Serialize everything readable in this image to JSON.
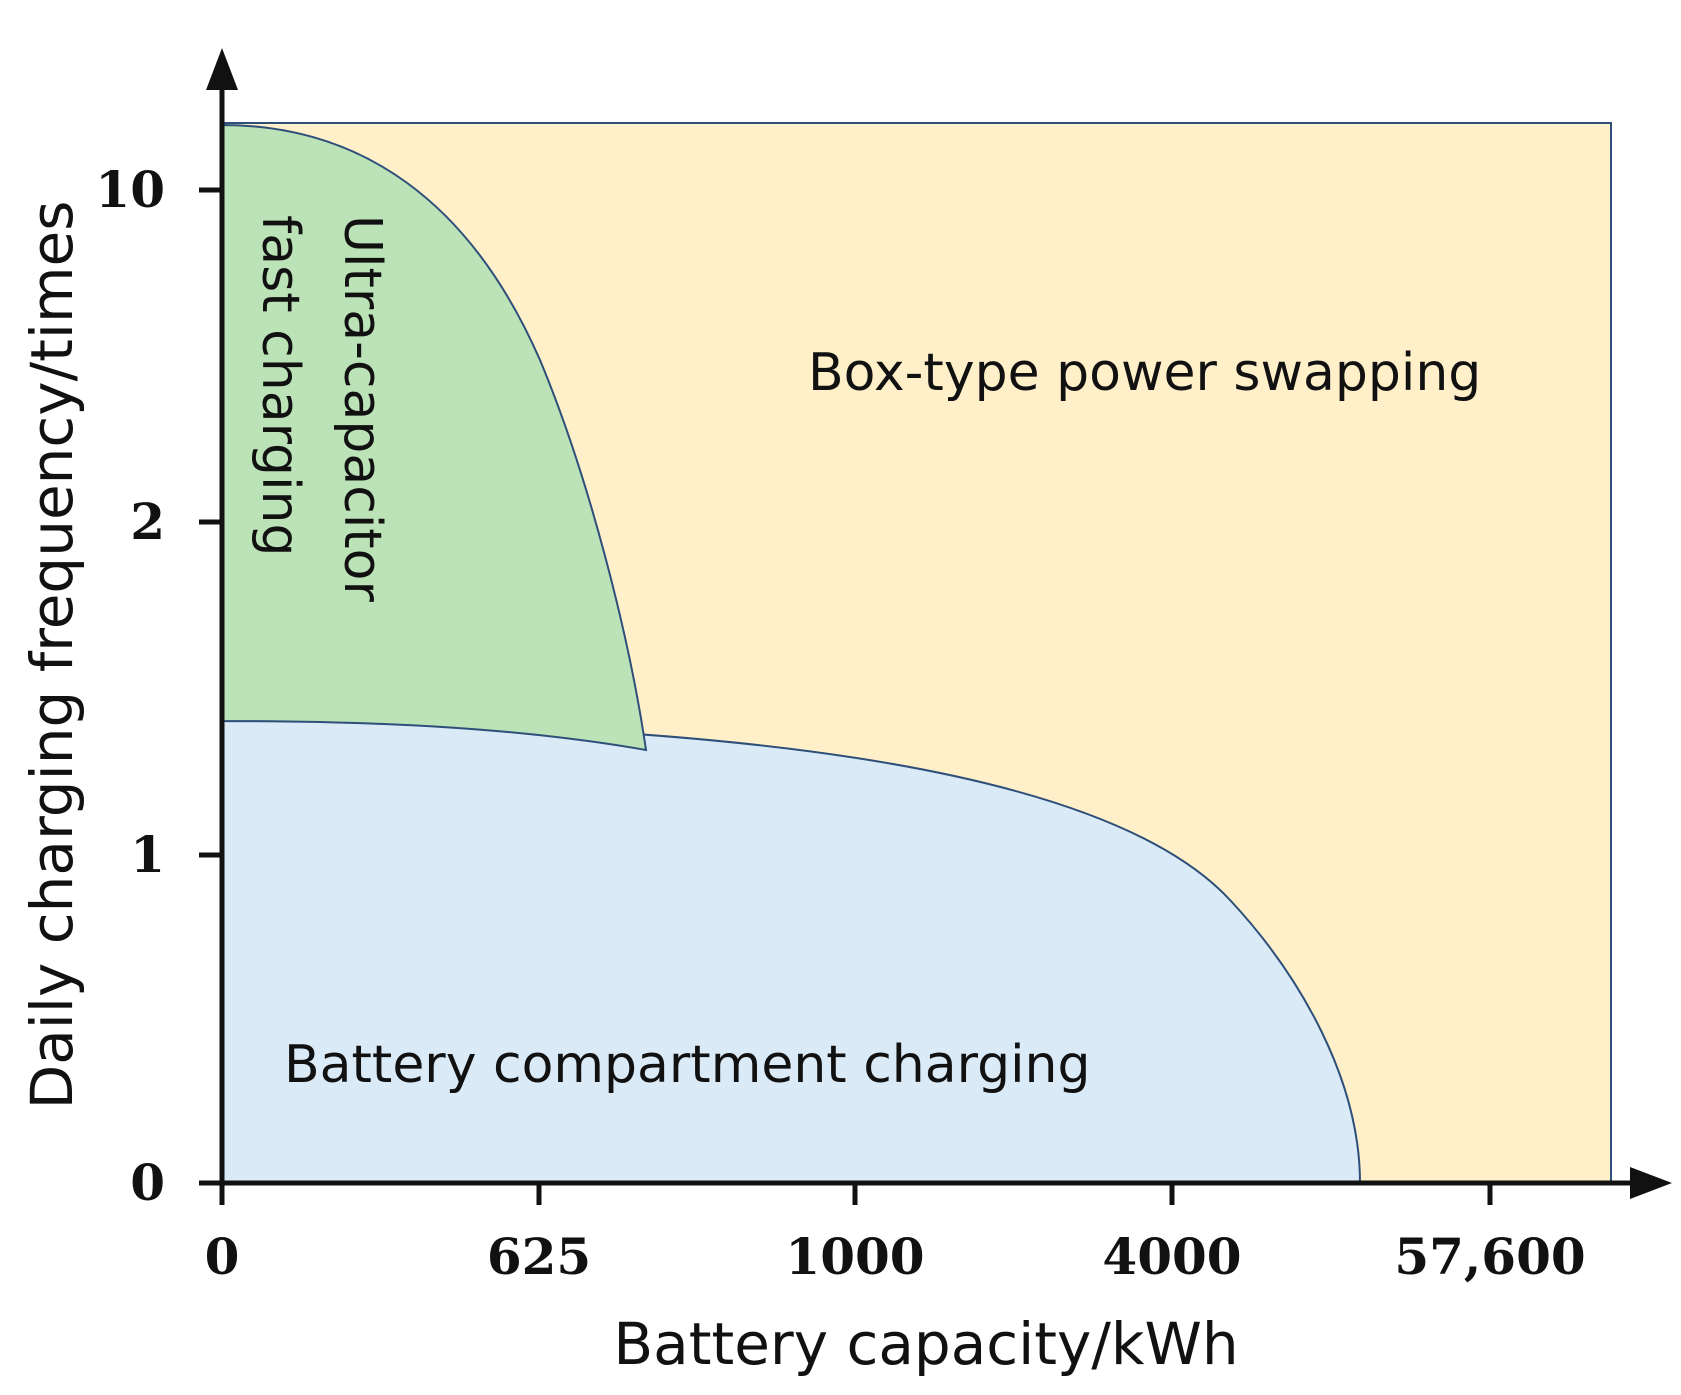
{
  "chart_data": {
    "type": "area",
    "title": "",
    "xlabel": "Battery capacity/kWh",
    "ylabel": "Daily charging frequency/times",
    "x_ticks": [
      "0",
      "625",
      "1000",
      "4000",
      "57,600"
    ],
    "y_ticks": [
      "0",
      "1",
      "2",
      "10"
    ],
    "scale_note": "non-linear categorical tick spacing on both axes",
    "grid": false,
    "legend": "none",
    "regions": [
      {
        "label": "Box-type power swapping",
        "color": "#FFF0C9",
        "extent": "full plot area (background)"
      },
      {
        "label": "Ultra-capacitor fast charging",
        "label_lines": [
          "Ultra-capacitor",
          "fast charging"
        ],
        "color": "#BCE2B7",
        "boundary_from_x": "0",
        "boundary_to_x": "between 625 and 1000",
        "top_y": "above 10",
        "bottom_y": "between 1 and 2"
      },
      {
        "label": "Battery compartment charging",
        "color": "#DAEAF7",
        "boundary_from_x": "0",
        "boundary_to_x": "between 4000 and 57,600",
        "top_y": "between 1 and 2",
        "bottom_y": "0"
      }
    ],
    "colors": {
      "boundary": "#2E4F7A",
      "axis": "#111111"
    }
  }
}
